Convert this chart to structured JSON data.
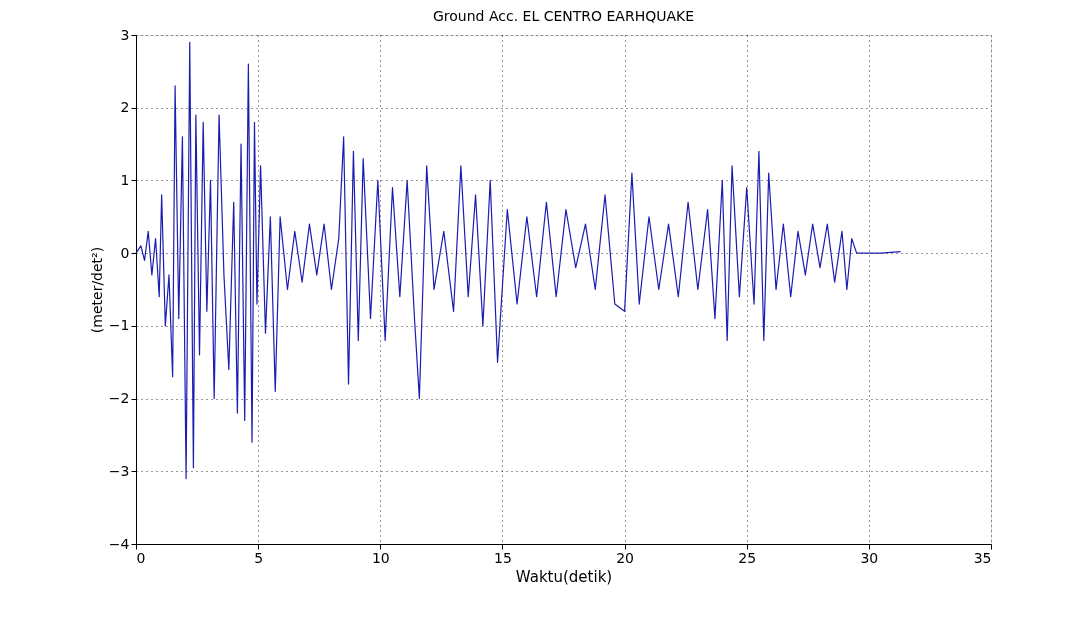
{
  "chart_data": {
    "type": "line",
    "title": "Ground Acc. EL CENTRO EARHQUAKE",
    "xlabel": "Waktu(detik)",
    "ylabel": "(meter/det²)",
    "xlim": [
      0,
      35
    ],
    "xticks": [
      0,
      5,
      10,
      15,
      20,
      25,
      30,
      35
    ],
    "ylim": [
      -4,
      3
    ],
    "yticks": [
      -4,
      -3,
      -2,
      -1,
      0,
      1,
      2,
      3
    ],
    "grid": true,
    "series": [
      {
        "color": "#1c1cb0",
        "x": [
          0,
          0.2,
          0.35,
          0.5,
          0.65,
          0.8,
          0.95,
          1.05,
          1.2,
          1.35,
          1.5,
          1.6,
          1.75,
          1.9,
          2.05,
          2.2,
          2.35,
          2.45,
          2.6,
          2.75,
          2.9,
          3.05,
          3.2,
          3.4,
          3.6,
          3.8,
          4.0,
          4.15,
          4.3,
          4.45,
          4.6,
          4.75,
          4.85,
          4.95,
          5.1,
          5.3,
          5.5,
          5.7,
          5.9,
          6.2,
          6.5,
          6.8,
          7.1,
          7.4,
          7.7,
          8.0,
          8.3,
          8.5,
          8.7,
          8.9,
          9.1,
          9.3,
          9.6,
          9.9,
          10.2,
          10.5,
          10.8,
          11.1,
          11.4,
          11.6,
          11.9,
          12.2,
          12.6,
          13.0,
          13.3,
          13.6,
          13.9,
          14.2,
          14.5,
          14.8,
          15.2,
          15.6,
          16.0,
          16.4,
          16.8,
          17.2,
          17.6,
          18.0,
          18.4,
          18.8,
          19.2,
          19.6,
          20.0,
          20.3,
          20.6,
          21.0,
          21.4,
          21.8,
          22.2,
          22.6,
          23.0,
          23.4,
          23.7,
          24.0,
          24.2,
          24.4,
          24.7,
          25.0,
          25.3,
          25.5,
          25.7,
          25.9,
          26.2,
          26.5,
          26.8,
          27.1,
          27.4,
          27.7,
          28.0,
          28.3,
          28.6,
          28.9,
          29.1,
          29.3,
          29.5,
          30.5,
          31.3
        ],
        "values": [
          0.0,
          0.1,
          -0.1,
          0.3,
          -0.3,
          0.2,
          -0.6,
          0.8,
          -1.0,
          -0.3,
          -1.7,
          2.3,
          -0.9,
          1.6,
          -3.1,
          2.9,
          -2.95,
          1.9,
          -1.4,
          1.8,
          -0.8,
          1.0,
          -2.0,
          1.9,
          -0.3,
          -1.6,
          0.7,
          -2.2,
          1.5,
          -2.3,
          2.6,
          -2.6,
          1.8,
          -0.7,
          1.2,
          -1.1,
          0.5,
          -1.9,
          0.5,
          -0.5,
          0.3,
          -0.4,
          0.4,
          -0.3,
          0.4,
          -0.5,
          0.2,
          1.6,
          -1.8,
          1.4,
          -1.2,
          1.3,
          -0.9,
          1.0,
          -1.2,
          0.9,
          -0.6,
          1.0,
          -0.9,
          -2.0,
          1.2,
          -0.5,
          0.3,
          -0.8,
          1.2,
          -0.6,
          0.8,
          -1.0,
          1.0,
          -1.5,
          0.6,
          -0.7,
          0.5,
          -0.6,
          0.7,
          -0.6,
          0.6,
          -0.2,
          0.4,
          -0.5,
          0.8,
          -0.7,
          -0.8,
          1.1,
          -0.7,
          0.5,
          -0.5,
          0.4,
          -0.6,
          0.7,
          -0.5,
          0.6,
          -0.9,
          1.0,
          -1.2,
          1.2,
          -0.6,
          0.9,
          -0.7,
          1.4,
          -1.2,
          1.1,
          -0.5,
          0.4,
          -0.6,
          0.3,
          -0.3,
          0.4,
          -0.2,
          0.4,
          -0.4,
          0.3,
          -0.5,
          0.2,
          0.0,
          0.0,
          0.02
        ]
      }
    ]
  }
}
